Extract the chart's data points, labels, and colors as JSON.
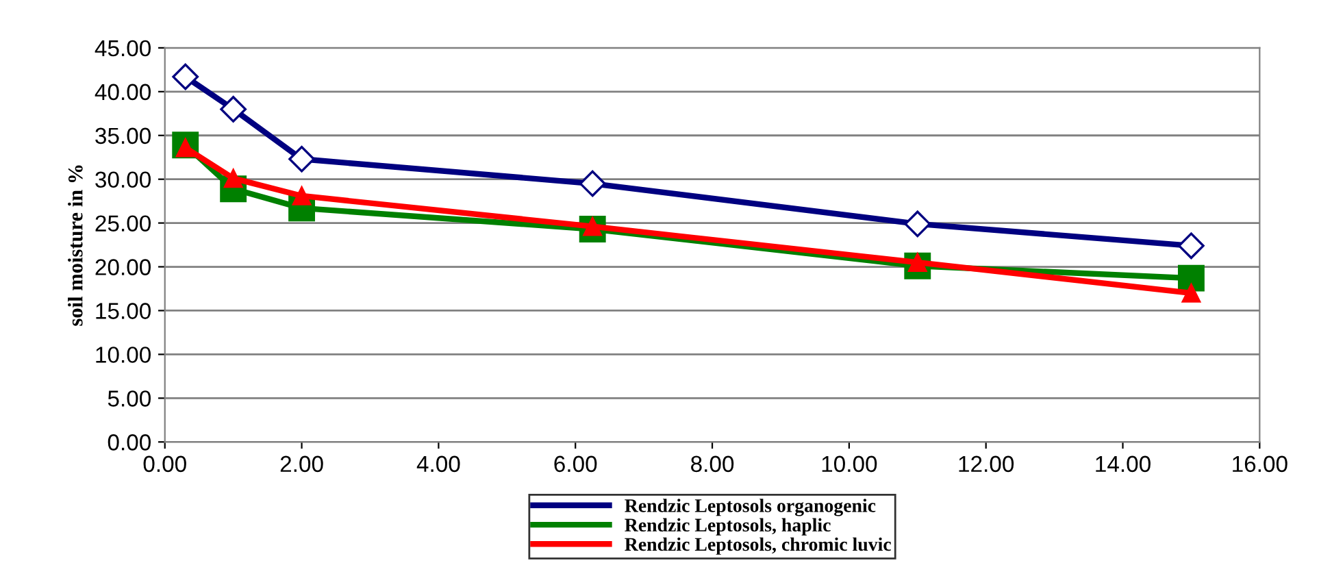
{
  "chart_data": {
    "type": "line",
    "ylabel": "soil moisture in %",
    "xlim": [
      0,
      16
    ],
    "xticks": [
      {
        "value": 0,
        "label": "0.00"
      },
      {
        "value": 2,
        "label": "2.00"
      },
      {
        "value": 4,
        "label": "4.00"
      },
      {
        "value": 6,
        "label": "6.00"
      },
      {
        "value": 8,
        "label": "8.00"
      },
      {
        "value": 10,
        "label": "10.00"
      },
      {
        "value": 12,
        "label": "12.00"
      },
      {
        "value": 14,
        "label": "14.00"
      },
      {
        "value": 16,
        "label": "16.00"
      }
    ],
    "ylim": [
      0,
      45
    ],
    "yticks": [
      {
        "value": 0,
        "label": "0.00"
      },
      {
        "value": 5,
        "label": "5.00"
      },
      {
        "value": 10,
        "label": "10.00"
      },
      {
        "value": 15,
        "label": "15.00"
      },
      {
        "value": 20,
        "label": "20.00"
      },
      {
        "value": 25,
        "label": "25.00"
      },
      {
        "value": 30,
        "label": "30.00"
      },
      {
        "value": 35,
        "label": "35.00"
      },
      {
        "value": 40,
        "label": "40.00"
      },
      {
        "value": 45,
        "label": "45.00"
      }
    ],
    "grid": "y",
    "legend": "bottom",
    "line_style": "solid",
    "series": [
      {
        "name": "Rendzic Leptosols organogenic",
        "color": "#000080",
        "marker": "diamond",
        "x": [
          0.3,
          1,
          2,
          6.25,
          11,
          15
        ],
        "values": [
          41.7,
          38.0,
          32.3,
          29.5,
          24.9,
          22.4
        ]
      },
      {
        "name": "Rendzic Leptosols, haplic",
        "color": "#008000",
        "marker": "square",
        "x": [
          0.3,
          1,
          2,
          6.25,
          11,
          15
        ],
        "values": [
          33.9,
          28.9,
          26.7,
          24.3,
          20.1,
          18.7
        ]
      },
      {
        "name": "Rendzic Leptosols, chromic luvic",
        "color": "#ff0000",
        "marker": "triangle",
        "x": [
          0.3,
          1,
          2,
          6.25,
          11,
          15
        ],
        "values": [
          33.6,
          30.1,
          28.1,
          24.6,
          20.5,
          17.0
        ]
      }
    ]
  }
}
